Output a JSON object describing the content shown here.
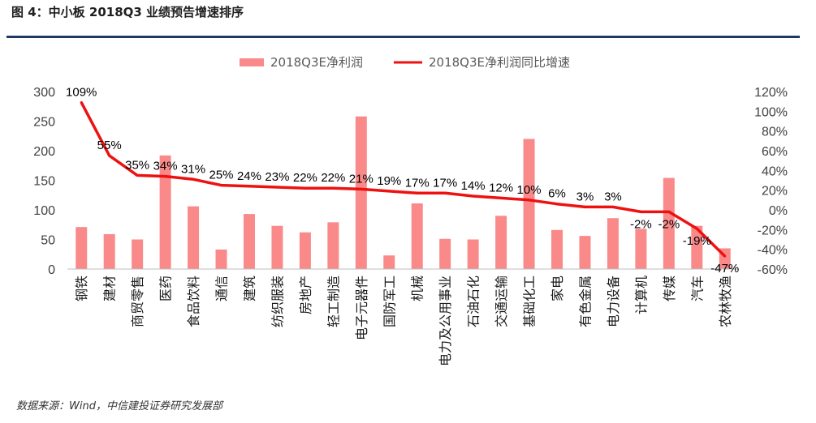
{
  "figure": {
    "title": "图 4：中小板 2018Q3 业绩预告增速排序",
    "source": "数据来源：Wind，中信建投证券研究发展部"
  },
  "colors": {
    "bar": "#fa8a8a",
    "line": "#ee1111",
    "title_rule": "#1f3864"
  },
  "chart_data": {
    "type": "bar",
    "categories": [
      "钢铁",
      "建材",
      "商贸零售",
      "医药",
      "食品饮料",
      "通信",
      "建筑",
      "纺织服装",
      "房地产",
      "轻工制造",
      "电子元器件",
      "国防军工",
      "机械",
      "电力及公用事业",
      "石油石化",
      "交通运输",
      "基础化工",
      "家电",
      "有色金属",
      "电力设备",
      "计算机",
      "传媒",
      "汽车",
      "农林牧渔"
    ],
    "series": [
      {
        "name": "2018Q3E净利润",
        "type": "bar",
        "axis": "left",
        "values": [
          71,
          59,
          50,
          192,
          106,
          33,
          93,
          73,
          62,
          79,
          258,
          23,
          111,
          51,
          50,
          90,
          220,
          66,
          56,
          86,
          68,
          154,
          73,
          35
        ]
      },
      {
        "name": "2018Q3E净利润同比增速",
        "type": "line",
        "axis": "right",
        "values": [
          109,
          55,
          35,
          34,
          31,
          25,
          24,
          23,
          22,
          22,
          21,
          19,
          17,
          17,
          14,
          12,
          10,
          6,
          3,
          3,
          -2,
          -2,
          -19,
          -47
        ]
      }
    ],
    "data_labels": [
      "109%",
      "55%",
      "35%",
      "34%",
      "31%",
      "25%",
      "24%",
      "23%",
      "22%",
      "22%",
      "21%",
      "19%",
      "17%",
      "17%",
      "14%",
      "12%",
      "10%",
      "6%",
      "3%",
      "3%",
      "-2%",
      "-2%",
      "-19%",
      "-47%"
    ],
    "y_left": {
      "min": 0,
      "max": 300,
      "ticks": [
        "0",
        "50",
        "100",
        "150",
        "200",
        "250",
        "300"
      ]
    },
    "y_right": {
      "min": -60,
      "max": 120,
      "ticks": [
        "-60%",
        "-40%",
        "-20%",
        "0%",
        "20%",
        "40%",
        "60%",
        "80%",
        "100%",
        "120%"
      ]
    },
    "legend": "top",
    "grid": false
  }
}
